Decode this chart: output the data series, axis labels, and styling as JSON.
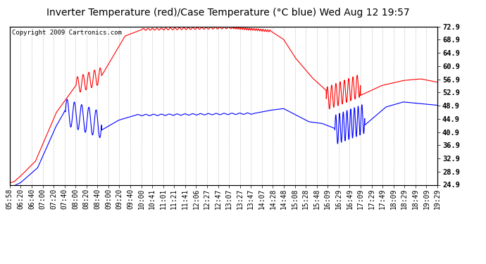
{
  "title": "Inverter Temperature (red)/Case Temperature (°C blue) Wed Aug 12 19:57",
  "copyright": "Copyright 2009 Cartronics.com",
  "ylim": [
    24.9,
    72.9
  ],
  "yticks": [
    24.9,
    28.9,
    32.9,
    36.9,
    40.9,
    44.9,
    48.9,
    52.9,
    56.9,
    60.9,
    64.9,
    68.9,
    72.9
  ],
  "background_color": "#ffffff",
  "plot_bg": "#ffffff",
  "grid_color": "#bbbbbb",
  "title_fontsize": 10,
  "copyright_fontsize": 6.5,
  "tick_label_fontsize": 7,
  "x_labels": [
    "05:58",
    "06:20",
    "06:40",
    "07:00",
    "07:20",
    "07:40",
    "08:00",
    "08:20",
    "08:40",
    "09:00",
    "09:20",
    "09:40",
    "10:00",
    "10:41",
    "11:01",
    "11:21",
    "11:41",
    "12:06",
    "12:27",
    "12:47",
    "13:07",
    "13:27",
    "13:47",
    "14:07",
    "14:28",
    "14:48",
    "15:08",
    "15:28",
    "15:48",
    "16:09",
    "16:29",
    "16:49",
    "17:09",
    "17:29",
    "17:49",
    "18:09",
    "18:29",
    "18:49",
    "19:09",
    "19:29"
  ],
  "figsize": [
    6.9,
    3.75
  ],
  "dpi": 100
}
